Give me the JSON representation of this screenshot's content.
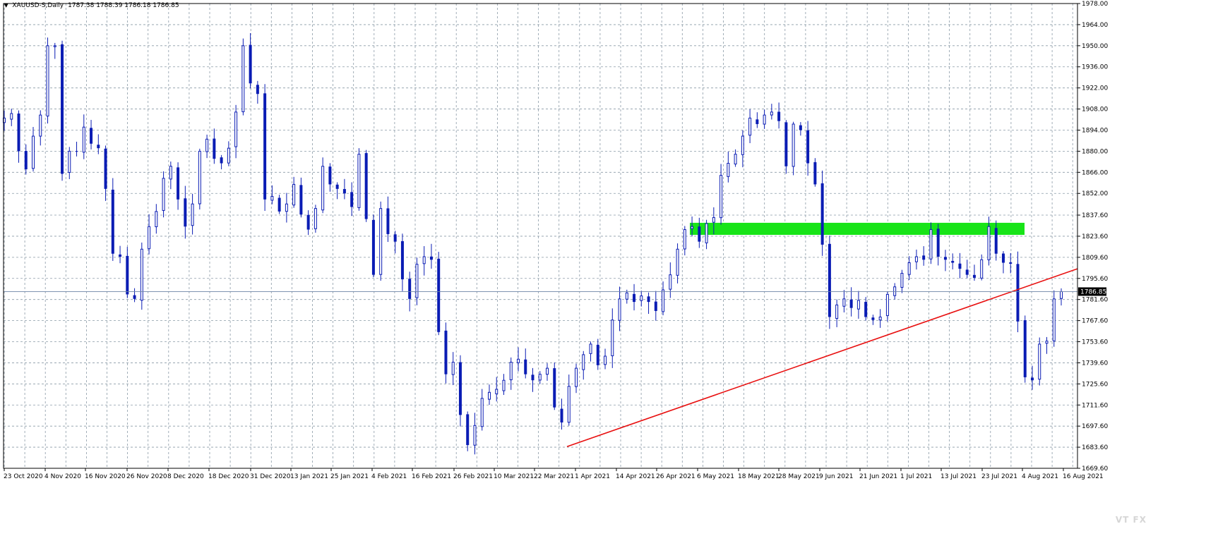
{
  "header": {
    "toggle_glyph": "▼",
    "symbol": "XAUUSD-S,Daily",
    "ohlc": "1787.38 1788.39 1786.18 1786.85"
  },
  "watermark": "VT FX",
  "colors": {
    "background": "#ffffff",
    "grid": "#8a9aa6",
    "candle": "#0a1cb4",
    "bid_line": "#6d84a6",
    "price_label_bg": "#000000",
    "price_label_text": "#ffffff",
    "zone": "#18e418",
    "trendline": "#e81010"
  },
  "chart_data": {
    "type": "candlestick",
    "title": "XAUUSD-S,Daily",
    "ylim": [
      1669.6,
      1978.0
    ],
    "y_ticks": [
      "1978.00",
      "1964.00",
      "1950.00",
      "1936.00",
      "1922.00",
      "1908.00",
      "1894.00",
      "1880.00",
      "1866.00",
      "1852.00",
      "1837.60",
      "1823.60",
      "1809.60",
      "1795.60",
      "1781.60",
      "1767.60",
      "1753.60",
      "1739.60",
      "1725.60",
      "1711.60",
      "1697.60",
      "1683.60",
      "1669.60"
    ],
    "x_ticks": [
      "23 Oct 2020",
      "4 Nov 2020",
      "16 Nov 2020",
      "26 Nov 2020",
      "8 Dec 2020",
      "18 Dec 2020",
      "31 Dec 2020",
      "13 Jan 2021",
      "25 Jan 2021",
      "4 Feb 2021",
      "16 Feb 2021",
      "26 Feb 2021",
      "10 Mar 2021",
      "22 Mar 2021",
      "1 Apr 2021",
      "14 Apr 2021",
      "26 Apr 2021",
      "6 May 2021",
      "18 May 2021",
      "28 May 2021",
      "9 Jun 2021",
      "21 Jun 2021",
      "1 Jul 2021",
      "13 Jul 2021",
      "23 Jul 2021",
      "4 Aug 2021",
      "16 Aug 2021"
    ],
    "current_price": "1786.85",
    "closes": [
      1902,
      1905,
      1880,
      1868,
      1890,
      1904,
      1950,
      1950,
      1865,
      1880,
      1880,
      1896,
      1885,
      1882,
      1855,
      1812,
      1810,
      1785,
      1782,
      1815,
      1830,
      1840,
      1862,
      1870,
      1848,
      1830,
      1845,
      1880,
      1888,
      1875,
      1872,
      1882,
      1906,
      1950,
      1925,
      1918,
      1848,
      1850,
      1840,
      1845,
      1858,
      1838,
      1828,
      1842,
      1870,
      1858,
      1855,
      1852,
      1843,
      1878,
      1835,
      1798,
      1842,
      1825,
      1820,
      1795,
      1782,
      1805,
      1810,
      1808,
      1760,
      1732,
      1740,
      1705,
      1685,
      1698,
      1716,
      1720,
      1722,
      1728,
      1740,
      1742,
      1732,
      1728,
      1732,
      1736,
      1710,
      1700,
      1724,
      1736,
      1745,
      1752,
      1738,
      1744,
      1768,
      1782,
      1786,
      1780,
      1784,
      1780,
      1774,
      1788,
      1798,
      1815,
      1828,
      1830,
      1820,
      1832,
      1836,
      1864,
      1872,
      1878,
      1890,
      1902,
      1898,
      1904,
      1906,
      1900,
      1870,
      1898,
      1894,
      1872,
      1858,
      1818,
      1770,
      1778,
      1782,
      1776,
      1781,
      1770,
      1768,
      1770,
      1785,
      1790,
      1799,
      1806,
      1810,
      1808,
      1828,
      1810,
      1808,
      1806,
      1802,
      1798,
      1796,
      1808,
      1830,
      1812,
      1806,
      1806,
      1767,
      1730,
      1728,
      1752,
      1754,
      1782,
      1786.85
    ],
    "resistance_zone": {
      "y_range": [
        1824.5,
        1832.5
      ]
    },
    "trendline": {
      "y_start": 1684.0,
      "y_end": 1802.0
    }
  }
}
